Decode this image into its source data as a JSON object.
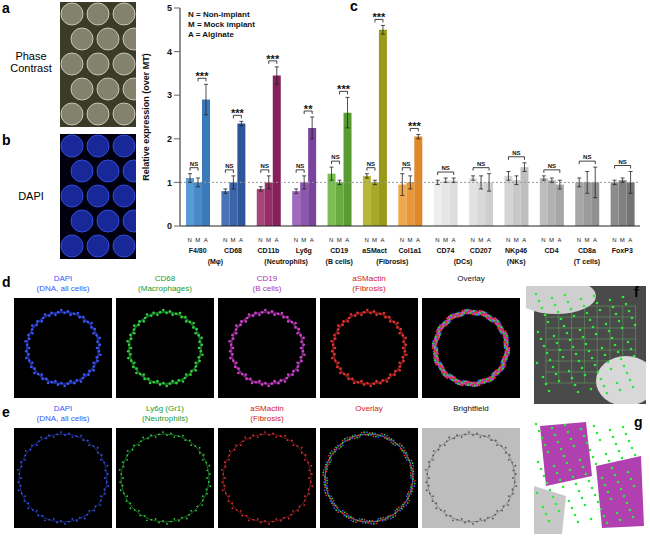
{
  "panels": {
    "a": {
      "letter": "a",
      "label": "Phase Contrast"
    },
    "b": {
      "letter": "b",
      "label": "DAPI"
    },
    "c": {
      "letter": "c"
    },
    "d": {
      "letter": "d",
      "images": [
        {
          "label": [
            "DAPI",
            "(DNA, all cells)"
          ]
        },
        {
          "label": [
            "CD68",
            "(Macrophages)"
          ]
        },
        {
          "label": [
            "CD19",
            "(B cells)"
          ]
        },
        {
          "label": [
            "aSMactin",
            "(Fibrosis)"
          ]
        },
        {
          "label": [
            "Overlay"
          ]
        }
      ]
    },
    "e": {
      "letter": "e",
      "images": [
        {
          "label": [
            "DAPI",
            "(DNA, all cells)"
          ]
        },
        {
          "label": [
            "Ly6g (Gr1)",
            "(Neutrophils)"
          ]
        },
        {
          "label": [
            "aSMactin",
            "(Fibrosis)"
          ]
        },
        {
          "label": [
            "Overlay"
          ]
        },
        {
          "label": [
            "Brightfield"
          ]
        }
      ]
    },
    "f": {
      "letter": "f"
    },
    "g": {
      "letter": "g"
    }
  },
  "chart_data": {
    "type": "bar",
    "y_label": "Relative expression (over MT)",
    "legend_text": [
      "N = Non-implant",
      "M = Mock implant",
      "A = Alginate"
    ],
    "categories": [
      "F4/80",
      "CD68",
      "CD11b",
      "Ly6g",
      "CD19",
      "aSMact",
      "Col1a1",
      "CD74",
      "CD207",
      "NKp46",
      "CD4",
      "CD8a",
      "FoxP3"
    ],
    "groups": [
      {
        "label": "(Mφ)",
        "categories": [
          "F4/80",
          "CD68"
        ]
      },
      {
        "label": "(Neutrophils)",
        "categories": [
          "CD11b",
          "Ly6g"
        ]
      },
      {
        "label": "(B cells)",
        "categories": [
          "CD19"
        ]
      },
      {
        "label": "(Fibrosis)",
        "categories": [
          "aSMact",
          "Col1a1"
        ]
      },
      {
        "label": "(DCs)",
        "categories": [
          "CD74",
          "CD207"
        ]
      },
      {
        "label": "(NKs)",
        "categories": [
          "NKp46"
        ]
      },
      {
        "label": "(T cells)",
        "categories": [
          "CD4",
          "CD8a",
          "FoxP3"
        ]
      }
    ],
    "series": [
      {
        "name": "N",
        "colors": [
          "#5b9bd5",
          "#4a74b8",
          "#a8457a",
          "#a06ac0",
          "#7cbd52",
          "#b8b838",
          "#f0a850",
          "#eeeeee",
          "#e2e2e2",
          "#d4d4d4",
          "#bdbdbd",
          "#a8a8a8",
          "#8c8c8c"
        ],
        "values": [
          1.1,
          0.8,
          0.85,
          0.8,
          1.2,
          1.15,
          0.95,
          1.0,
          1.1,
          1.15,
          1.1,
          1.0,
          1.0
        ],
        "errors": [
          0.1,
          0.05,
          0.05,
          0.05,
          0.15,
          0.05,
          0.25,
          0.05,
          0.05,
          0.1,
          0.05,
          0.1,
          0.05
        ]
      },
      {
        "name": "M",
        "colors": [
          "#4a8ac8",
          "#3c64a8",
          "#962f68",
          "#8c55ae",
          "#68ab3e",
          "#a8a828",
          "#e89838",
          "#e6e6e6",
          "#d8d8d8",
          "#c8c8c8",
          "#b2b2b2",
          "#9c9c9c",
          "#808080"
        ],
        "values": [
          1.0,
          1.0,
          1.0,
          1.0,
          1.0,
          1.0,
          1.0,
          1.05,
          1.0,
          1.05,
          1.05,
          1.0,
          1.05
        ],
        "errors": [
          0.1,
          0.15,
          0.15,
          0.15,
          0.05,
          0.05,
          0.15,
          0.05,
          0.15,
          0.1,
          0.05,
          0.25,
          0.05
        ]
      },
      {
        "name": "A",
        "colors": [
          "#3a7abb",
          "#2e5698",
          "#85205a",
          "#7a449c",
          "#589b30",
          "#9a9a1a",
          "#e08828",
          "#dedede",
          "#cfcfcf",
          "#bebebe",
          "#a6a6a6",
          "#909090",
          "#747474"
        ],
        "values": [
          2.9,
          2.35,
          3.45,
          2.25,
          2.6,
          4.5,
          2.05,
          1.05,
          1.0,
          1.35,
          0.95,
          1.0,
          1.0
        ],
        "errors": [
          0.35,
          0.05,
          0.2,
          0.25,
          0.35,
          0.1,
          0.05,
          0.05,
          0.2,
          0.1,
          0.1,
          0.35,
          0.25
        ]
      }
    ],
    "ylim": [
      0,
      5
    ],
    "yticks": [
      0,
      1,
      2,
      3,
      4,
      5
    ],
    "reference_line": 1,
    "grid": false,
    "brackets": [
      {
        "category": "F4/80",
        "from": "N",
        "to": "M",
        "label": "NS"
      },
      {
        "category": "F4/80",
        "from": "M",
        "to": "A",
        "label": "***"
      },
      {
        "category": "CD68",
        "from": "N",
        "to": "M",
        "label": "NS"
      },
      {
        "category": "CD68",
        "from": "M",
        "to": "A",
        "label": "***"
      },
      {
        "category": "CD11b",
        "from": "N",
        "to": "M",
        "label": "NS"
      },
      {
        "category": "CD11b",
        "from": "M",
        "to": "A",
        "label": "***"
      },
      {
        "category": "Ly6g",
        "from": "N",
        "to": "M",
        "label": "NS"
      },
      {
        "category": "Ly6g",
        "from": "M",
        "to": "A",
        "label": "**"
      },
      {
        "category": "CD19",
        "from": "N",
        "to": "M",
        "label": "NS"
      },
      {
        "category": "CD19",
        "from": "M",
        "to": "A",
        "label": "***"
      },
      {
        "category": "aSMact",
        "from": "N",
        "to": "M",
        "label": "NS"
      },
      {
        "category": "aSMact",
        "from": "M",
        "to": "A",
        "label": "***"
      },
      {
        "category": "Col1a1",
        "from": "N",
        "to": "M",
        "label": "NS"
      },
      {
        "category": "Col1a1",
        "from": "M",
        "to": "A",
        "label": "***"
      },
      {
        "category": "CD74",
        "from": "N",
        "to": "A",
        "label": "NS"
      },
      {
        "category": "CD207",
        "from": "N",
        "to": "A",
        "label": "NS"
      },
      {
        "category": "NKp46",
        "from": "N",
        "to": "A",
        "label": "NS"
      },
      {
        "category": "CD4",
        "from": "N",
        "to": "A",
        "label": "NS"
      },
      {
        "category": "CD8a",
        "from": "N",
        "to": "A",
        "label": "NS"
      },
      {
        "category": "FoxP3",
        "from": "N",
        "to": "A",
        "label": "NS"
      }
    ]
  }
}
